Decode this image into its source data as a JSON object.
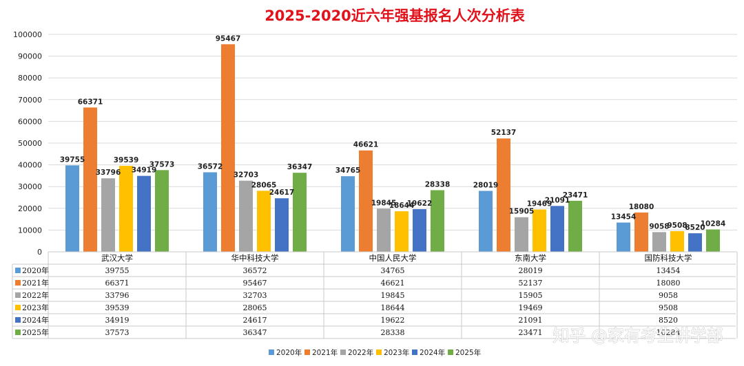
{
  "watermark": "知乎 @家有考生讲学部",
  "chart_data": {
    "type": "bar",
    "title": "2025-2020近六年强基报名人次分析表",
    "categories": [
      "武汉大学",
      "华中科技大学",
      "中国人民大学",
      "东南大学",
      "国防科技大学"
    ],
    "series": [
      {
        "name": "2020年",
        "color": "#5b9bd5",
        "values": [
          39755,
          36572,
          34765,
          28019,
          13454
        ]
      },
      {
        "name": "2021年",
        "color": "#ed7d31",
        "values": [
          66371,
          95467,
          46621,
          52137,
          18080
        ]
      },
      {
        "name": "2022年",
        "color": "#a5a5a5",
        "values": [
          33796,
          32703,
          19845,
          15905,
          9058
        ]
      },
      {
        "name": "2023年",
        "color": "#ffc000",
        "values": [
          39539,
          28065,
          18644,
          19469,
          9508
        ]
      },
      {
        "name": "2024年",
        "color": "#4472c4",
        "values": [
          34919,
          24617,
          19622,
          21091,
          8520
        ]
      },
      {
        "name": "2025年",
        "color": "#70ad47",
        "values": [
          37573,
          36347,
          28338,
          23471,
          10284
        ]
      }
    ],
    "ylim": [
      0,
      100000
    ],
    "yticks": [
      0,
      10000,
      20000,
      30000,
      40000,
      50000,
      60000,
      70000,
      80000,
      90000,
      100000
    ],
    "grid": true,
    "legend_position": "bottom",
    "data_table": true
  }
}
